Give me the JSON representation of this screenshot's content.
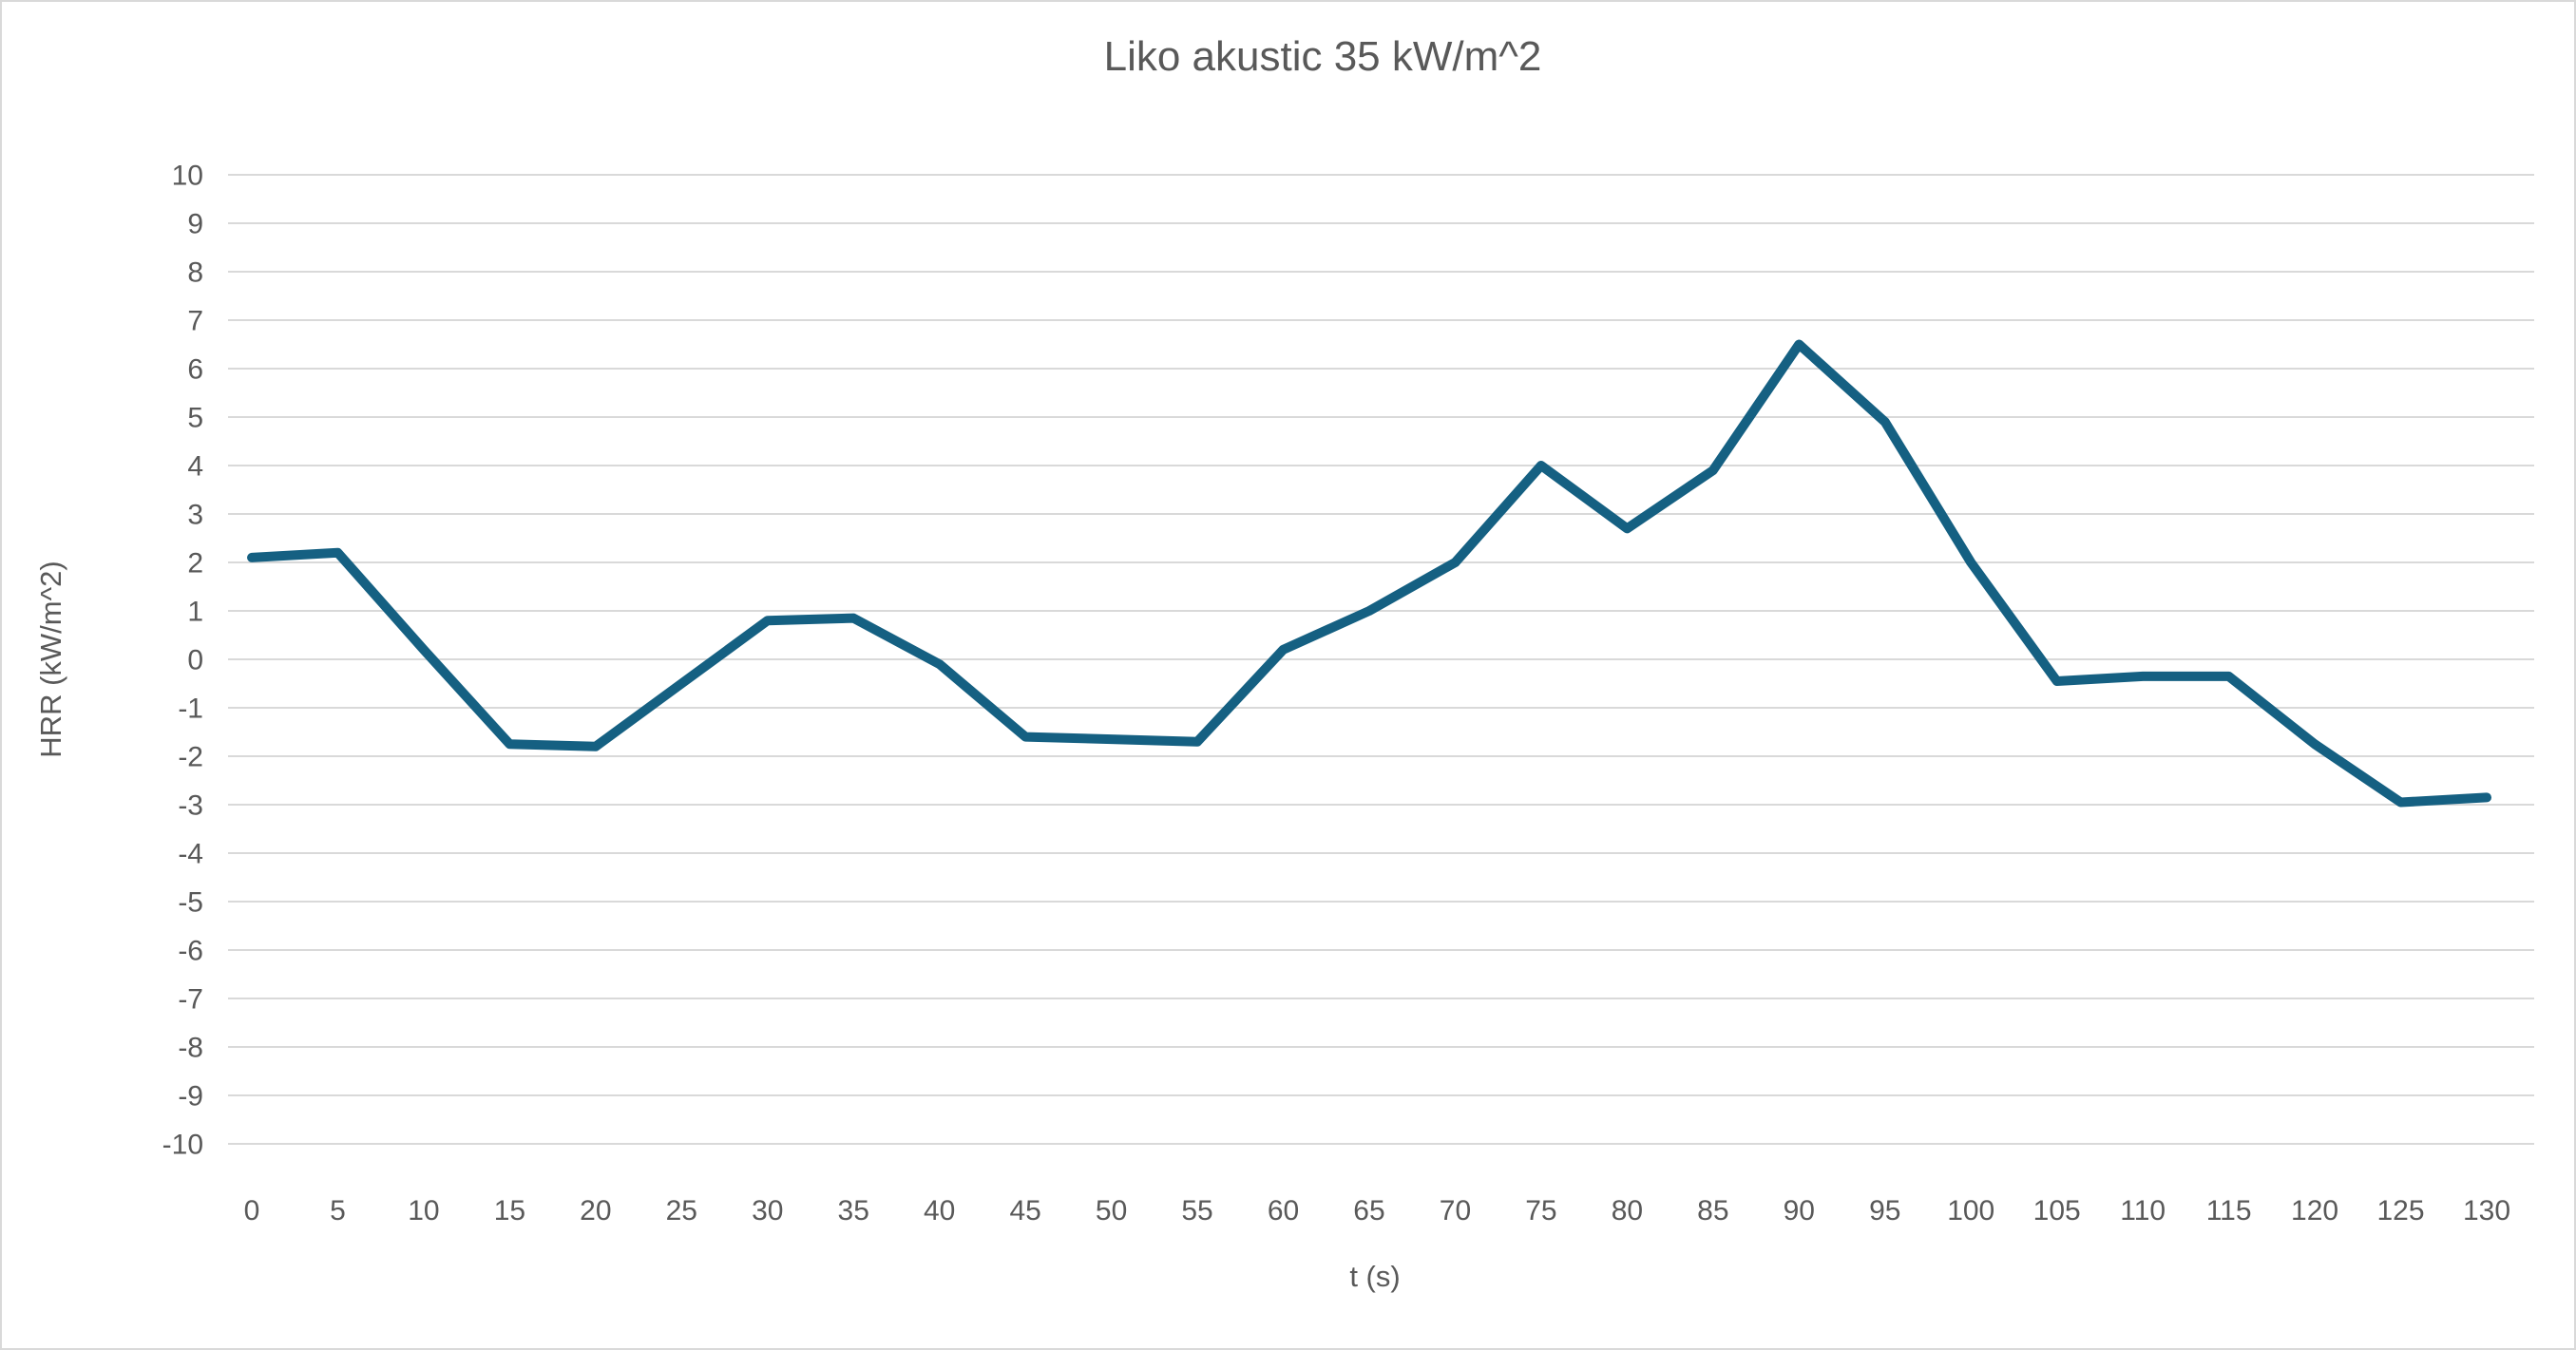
{
  "chart_data": {
    "type": "line",
    "title": "Liko akustic 35 kW/m^2",
    "xlabel": "t (s)",
    "ylabel": "HRR (kW/m^2)",
    "x": [
      0,
      5,
      10,
      15,
      20,
      25,
      30,
      35,
      40,
      45,
      50,
      55,
      60,
      65,
      70,
      75,
      80,
      85,
      90,
      95,
      100,
      105,
      110,
      115,
      120,
      125,
      130
    ],
    "series": [
      {
        "name": "HRR",
        "values": [
          2.1,
          2.2,
          0.2,
          -1.75,
          -1.8,
          -0.5,
          0.8,
          0.85,
          -0.1,
          -1.6,
          -1.65,
          -1.7,
          0.2,
          1.0,
          2.0,
          4.0,
          2.7,
          3.9,
          6.5,
          4.9,
          2.0,
          -0.45,
          -0.35,
          -0.35,
          -1.75,
          -2.95,
          -2.85
        ]
      }
    ],
    "ylim": [
      -10,
      10
    ],
    "y_ticks": [
      10,
      9,
      8,
      7,
      6,
      5,
      4,
      3,
      2,
      1,
      0,
      -1,
      -2,
      -3,
      -4,
      -5,
      -6,
      -7,
      -8,
      -9,
      -10
    ],
    "x_tick_labels": [
      "0",
      "5",
      "10",
      "15",
      "20",
      "25",
      "30",
      "35",
      "40",
      "45",
      "50",
      "55",
      "60",
      "65",
      "70",
      "75",
      "80",
      "85",
      "90",
      "95",
      "100",
      "105",
      "110",
      "115",
      "120",
      "125",
      "130"
    ],
    "grid": "horizontal",
    "legend": "none"
  },
  "colors": {
    "series_line": "#156082",
    "gridline": "#d9d9d9",
    "text": "#595959",
    "background": "#ffffff",
    "frame_border": "#d9d9d9"
  }
}
